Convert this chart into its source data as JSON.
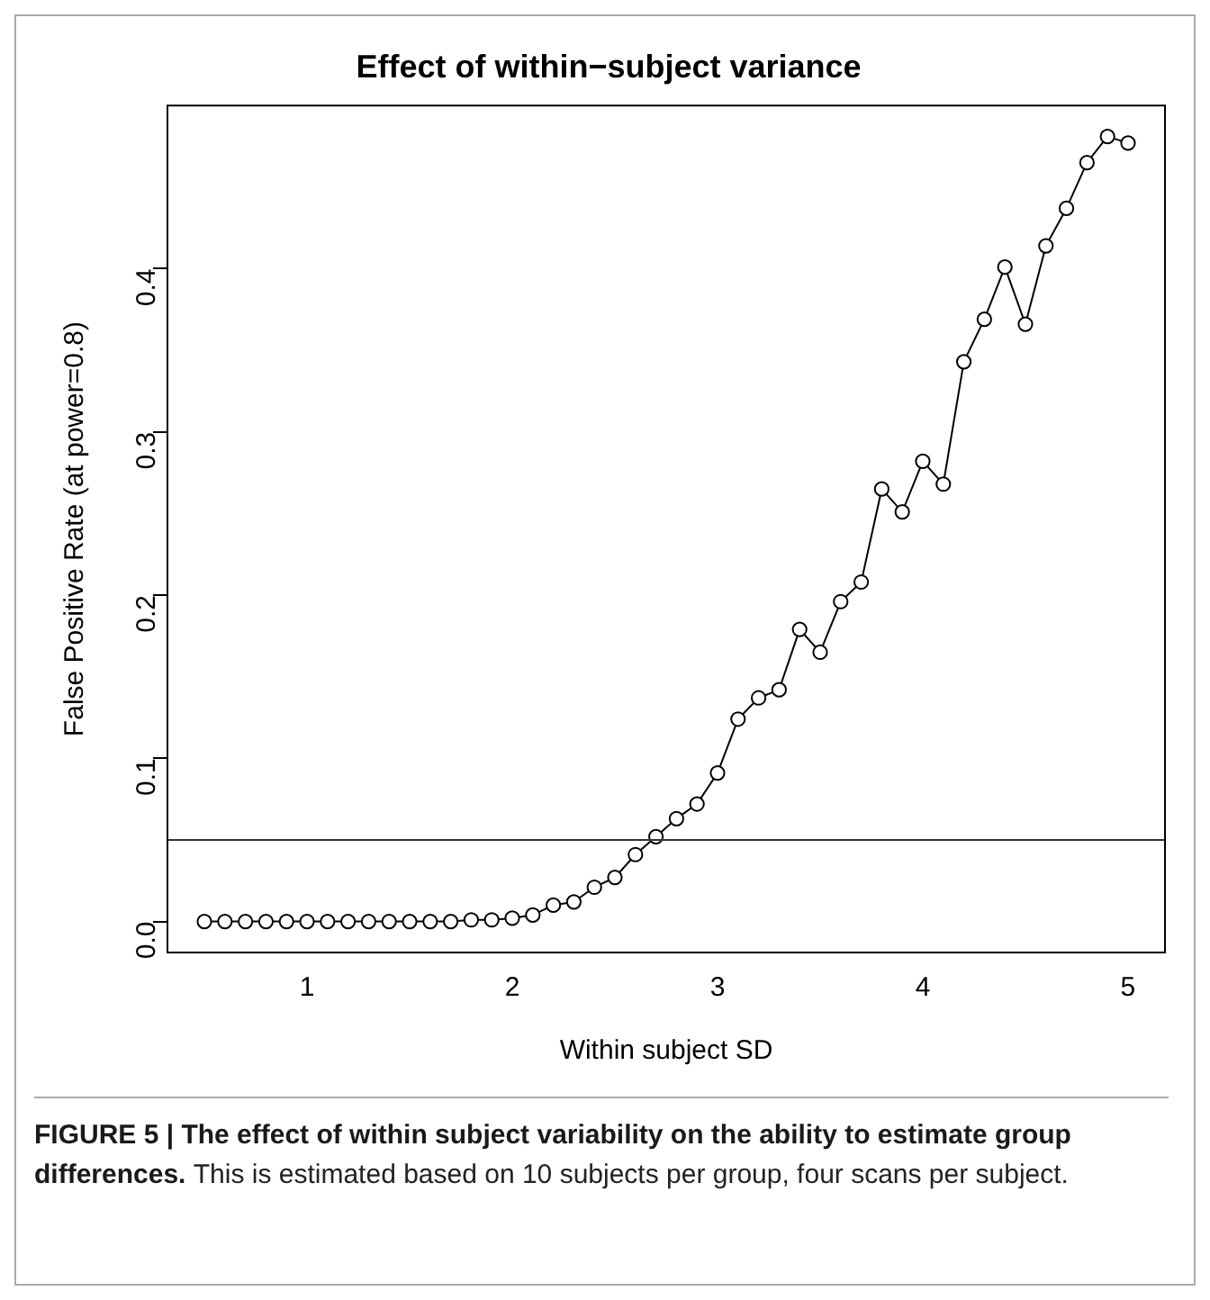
{
  "chart_data": {
    "type": "line",
    "title": "Effect of within−subject variance",
    "xlabel": "Within subject SD",
    "ylabel": "False Positive Rate (at power=0.8)",
    "x": [
      0.5,
      0.6,
      0.7,
      0.8,
      0.9,
      1.0,
      1.1,
      1.2,
      1.3,
      1.4,
      1.5,
      1.6,
      1.7,
      1.8,
      1.9,
      2.0,
      2.1,
      2.2,
      2.3,
      2.4,
      2.5,
      2.6,
      2.7,
      2.8,
      2.9,
      3.0,
      3.1,
      3.2,
      3.3,
      3.4,
      3.5,
      3.6,
      3.7,
      3.8,
      3.9,
      4.0,
      4.1,
      4.2,
      4.3,
      4.4,
      4.5,
      4.6,
      4.7,
      4.8,
      4.9,
      5.0
    ],
    "series": [
      {
        "color": "#000000",
        "values": [
          0,
          0,
          0,
          0,
          0,
          0,
          0,
          0,
          0,
          0,
          0,
          0,
          0,
          0.001,
          0.001,
          0.002,
          0.004,
          0.01,
          0.012,
          0.021,
          0.027,
          0.041,
          0.052,
          0.063,
          0.072,
          0.091,
          0.124,
          0.137,
          0.142,
          0.179,
          0.165,
          0.196,
          0.208,
          0.265,
          0.251,
          0.282,
          0.268,
          0.343,
          0.369,
          0.401,
          0.366,
          0.414,
          0.437,
          0.465,
          0.481,
          0.477
        ]
      }
    ],
    "xlim": [
      0.32,
      5.18
    ],
    "xticks": [
      1,
      2,
      3,
      4,
      5
    ],
    "ylim": [
      -0.019,
      0.5
    ],
    "yticks": [
      {
        "value": 0,
        "label": "0.0"
      },
      0.1,
      0.2,
      0.3,
      0.4
    ],
    "ref_lines": [
      {
        "axis": "y",
        "value": 0.05,
        "color": "#333333"
      }
    ],
    "marker": "circle",
    "line_style": "solid",
    "grid": false,
    "legend": false,
    "annotations": [
      "FIGURE 5 | The effect of within subject variability on the ability to estimate group differences.",
      "This is estimated based on 10 subjects per group, four scans per subject."
    ]
  }
}
